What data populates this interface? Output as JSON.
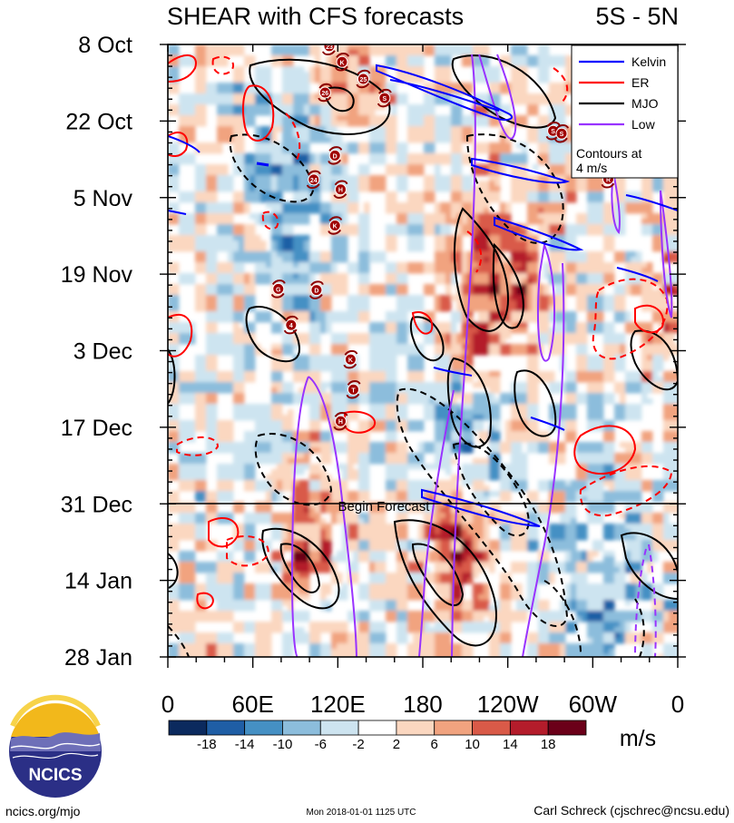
{
  "chart_data": {
    "type": "heatmap",
    "title": "SHEAR with CFS forecasts",
    "region_label": "5S - 5N",
    "y_ticks": [
      "8 Oct",
      "22 Oct",
      "5 Nov",
      "19 Nov",
      "3 Dec",
      "17 Dec",
      "31 Dec",
      "14 Jan",
      "28 Jan"
    ],
    "x_ticks": [
      "0",
      "60E",
      "120E",
      "180",
      "120W",
      "60W",
      "0"
    ],
    "x_range": [
      0,
      360
    ],
    "y_range_days": [
      0,
      112
    ],
    "colorbar": {
      "levels": [
        "-18",
        "-14",
        "-10",
        "-6",
        "-2",
        "2",
        "6",
        "10",
        "14",
        "18"
      ],
      "colors": [
        "#0b2a5e",
        "#1f5ea5",
        "#4590c4",
        "#8cbddc",
        "#cde4f0",
        "#ffffff",
        "#fbd7c0",
        "#f1a37f",
        "#d95a48",
        "#b41c2b",
        "#6b0019"
      ],
      "units": "m/s"
    },
    "legend": {
      "items": [
        {
          "label": "Kelvin",
          "color": "#0000ff"
        },
        {
          "label": "ER",
          "color": "#ff0000"
        },
        {
          "label": "MJO",
          "color": "#000000"
        },
        {
          "label": "Low",
          "color": "#9933ff"
        }
      ],
      "note_line1": "Contours at",
      "note_line2": "4 m/s",
      "position": "top-right"
    },
    "forecast_start": "31 Dec",
    "forecast_label": "Begin Forecast",
    "storms": [
      {
        "label": "23",
        "lon": 114,
        "day": 0.3
      },
      {
        "label": "K",
        "lon": 123,
        "day": 3.2
      },
      {
        "label": "25",
        "lon": 138,
        "day": 6.3
      },
      {
        "label": "26",
        "lon": 111,
        "day": 8.8
      },
      {
        "label": "S",
        "lon": 153,
        "day": 9.8
      },
      {
        "label": "S",
        "lon": 272,
        "day": 15.8
      },
      {
        "label": "S",
        "lon": 278,
        "day": 16.3
      },
      {
        "label": "D",
        "lon": 118,
        "day": 20.3
      },
      {
        "label": "24",
        "lon": 103,
        "day": 24.7
      },
      {
        "label": "R",
        "lon": 311,
        "day": 24.6
      },
      {
        "label": "H",
        "lon": 122,
        "day": 26.5
      },
      {
        "label": "K",
        "lon": 118,
        "day": 33.1
      },
      {
        "label": "G",
        "lon": 78,
        "day": 44.7
      },
      {
        "label": "D",
        "lon": 105,
        "day": 44.9
      },
      {
        "label": "4",
        "lon": 87,
        "day": 51.3
      },
      {
        "label": "K",
        "lon": 129,
        "day": 57.6
      },
      {
        "label": "T",
        "lon": 131,
        "day": 63.1
      },
      {
        "label": "H",
        "lon": 122,
        "day": 68.9
      }
    ]
  },
  "footer": {
    "logo_text": "NCICS",
    "url": "ncics.org/mjo",
    "timestamp": "Mon 2018-01-01 1125 UTC",
    "author": "Carl Schreck (cjschrec@ncsu.edu)"
  }
}
